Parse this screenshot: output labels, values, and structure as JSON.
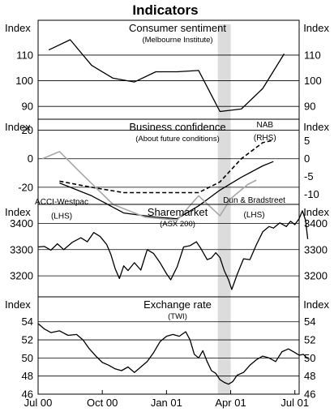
{
  "title": "Indicators",
  "shade": {
    "from": 8.4,
    "to": 9.0,
    "color": "#dcdcdc"
  },
  "x_axis": {
    "range": [
      0,
      12.2
    ],
    "ticks": [
      {
        "pos": 0,
        "label": "Jul 00"
      },
      {
        "pos": 3,
        "label": "Oct 00"
      },
      {
        "pos": 6,
        "label": "Jan 01"
      },
      {
        "pos": 9,
        "label": "Apr 01"
      },
      {
        "pos": 12,
        "label": "Jul 01"
      }
    ]
  },
  "chart_data": [
    {
      "type": "line",
      "title": "Consumer sentiment",
      "subtitle": "(Melbourne Institute)",
      "left_unit": "Index",
      "right_unit": "Index",
      "ylim": [
        85,
        122
      ],
      "yticks": [
        90,
        100,
        110
      ],
      "grid": true,
      "series": [
        {
          "style": "solid",
          "color": "#000000",
          "points": [
            [
              0.5,
              112
            ],
            [
              1.5,
              116
            ],
            [
              2.5,
              106
            ],
            [
              3.5,
              101
            ],
            [
              4.5,
              99.5
            ],
            [
              5.5,
              103.5
            ],
            [
              6.5,
              103.5
            ],
            [
              7.5,
              104
            ],
            [
              8.5,
              88
            ],
            [
              9.5,
              89
            ],
            [
              10.5,
              97
            ],
            [
              11.5,
              110.5
            ]
          ]
        }
      ]
    },
    {
      "type": "line",
      "title": "Business confidence",
      "subtitle": "(About future conditions)",
      "left_unit": "Index",
      "right_unit": "Index",
      "ylim": [
        -32,
        26
      ],
      "yticks": [
        -20,
        0,
        20
      ],
      "right_axis": {
        "ylim": [
          -12.8,
          10.4
        ],
        "ticks": [
          -10,
          -5,
          0,
          5
        ]
      },
      "grid": true,
      "annotations": [
        {
          "text": "NAB",
          "x": 10.6,
          "y": 24
        },
        {
          "text": "(RHS)",
          "x": 10.6,
          "y": 15
        },
        {
          "text": "ACCI-Westpac",
          "x": 1.1,
          "y": -30
        },
        {
          "text": "(LHS)",
          "x": 1.1,
          "y": -40
        },
        {
          "text": "Dun & Bradstreet",
          "x": 10.1,
          "y": -29
        },
        {
          "text": "(LHS)",
          "x": 10.1,
          "y": -39
        }
      ],
      "series": [
        {
          "style": "solid",
          "color": "#000000",
          "axis": "left",
          "points": [
            [
              1.0,
              -17
            ],
            [
              2.5,
              -26
            ],
            [
              4.0,
              -38
            ],
            [
              5.5,
              -41
            ],
            [
              6.5,
              -42
            ],
            [
              7.5,
              -33
            ],
            [
              8.5,
              -22
            ],
            [
              9.5,
              -13
            ],
            [
              10.5,
              -5
            ],
            [
              11.0,
              -2
            ]
          ]
        },
        {
          "style": "dashed",
          "color": "#000000",
          "axis": "right",
          "points": [
            [
              1.0,
              -6.3
            ],
            [
              2.5,
              -8
            ],
            [
              4.0,
              -9.5
            ],
            [
              5.5,
              -9.5
            ],
            [
              6.5,
              -9.5
            ],
            [
              7.5,
              -9.5
            ],
            [
              8.5,
              -6.5
            ],
            [
              9.5,
              0
            ],
            [
              10.5,
              4.5
            ],
            [
              11.0,
              5.2
            ]
          ]
        },
        {
          "style": "solid",
          "color": "#a8a8a8",
          "axis": "left",
          "points": [
            [
              0.2,
              0
            ],
            [
              1.0,
              5
            ],
            [
              2.0,
              -10
            ],
            [
              3.5,
              -32
            ],
            [
              5.0,
              -41
            ],
            [
              6.5,
              -43
            ],
            [
              7.5,
              -26
            ],
            [
              8.5,
              -40
            ],
            [
              9.0,
              -28
            ],
            [
              9.8,
              -18
            ],
            [
              10.2,
              -15
            ]
          ]
        }
      ]
    },
    {
      "type": "line",
      "title": "Sharemarket",
      "subtitle": "(ASX 200)",
      "left_unit": "Index",
      "right_unit": "Index",
      "ylim": [
        3120,
        3460
      ],
      "yticks": [
        3200,
        3300,
        3400
      ],
      "grid": true,
      "series": [
        {
          "style": "solid",
          "color": "#000000",
          "points": [
            [
              0.0,
              3310
            ],
            [
              0.3,
              3312
            ],
            [
              0.6,
              3298
            ],
            [
              0.9,
              3322
            ],
            [
              1.2,
              3300
            ],
            [
              1.6,
              3328
            ],
            [
              2.0,
              3345
            ],
            [
              2.3,
              3330
            ],
            [
              2.6,
              3365
            ],
            [
              2.9,
              3350
            ],
            [
              3.2,
              3320
            ],
            [
              3.4,
              3282
            ],
            [
              3.6,
              3228
            ],
            [
              3.8,
              3190
            ],
            [
              4.0,
              3238
            ],
            [
              4.2,
              3220
            ],
            [
              4.5,
              3250
            ],
            [
              4.8,
              3222
            ],
            [
              5.1,
              3300
            ],
            [
              5.4,
              3285
            ],
            [
              5.7,
              3250
            ],
            [
              6.0,
              3208
            ],
            [
              6.2,
              3185
            ],
            [
              6.5,
              3235
            ],
            [
              6.8,
              3310
            ],
            [
              7.1,
              3315
            ],
            [
              7.4,
              3330
            ],
            [
              7.6,
              3305
            ],
            [
              7.9,
              3262
            ],
            [
              8.1,
              3268
            ],
            [
              8.3,
              3288
            ],
            [
              8.5,
              3270
            ],
            [
              8.7,
              3220
            ],
            [
              8.9,
              3185
            ],
            [
              9.05,
              3148
            ],
            [
              9.3,
              3205
            ],
            [
              9.6,
              3265
            ],
            [
              9.9,
              3262
            ],
            [
              10.2,
              3318
            ],
            [
              10.5,
              3368
            ],
            [
              10.8,
              3388
            ],
            [
              11.0,
              3382
            ],
            [
              11.3,
              3402
            ],
            [
              11.6,
              3388
            ],
            [
              11.8,
              3408
            ],
            [
              12.0,
              3395
            ],
            [
              12.2,
              3418
            ],
            [
              12.35,
              3448
            ],
            [
              12.5,
              3412
            ],
            [
              12.6,
              3340
            ]
          ]
        }
      ]
    },
    {
      "type": "line",
      "title": "Exchange rate",
      "subtitle": "(TWI)",
      "left_unit": "Index",
      "right_unit": "Index",
      "ylim": [
        46,
        55.5
      ],
      "yticks": [
        46,
        48,
        50,
        52,
        54
      ],
      "grid": true,
      "series": [
        {
          "style": "solid",
          "color": "#000000",
          "points": [
            [
              0.0,
              53.8
            ],
            [
              0.3,
              53.2
            ],
            [
              0.6,
              52.8
            ],
            [
              1.0,
              53.0
            ],
            [
              1.4,
              52.5
            ],
            [
              1.8,
              52.6
            ],
            [
              2.1,
              52.0
            ],
            [
              2.4,
              51.0
            ],
            [
              2.7,
              50.2
            ],
            [
              3.0,
              49.5
            ],
            [
              3.3,
              49.2
            ],
            [
              3.6,
              48.8
            ],
            [
              3.9,
              48.6
            ],
            [
              4.2,
              49.0
            ],
            [
              4.5,
              48.4
            ],
            [
              4.8,
              49.0
            ],
            [
              5.1,
              49.6
            ],
            [
              5.4,
              50.6
            ],
            [
              5.7,
              51.8
            ],
            [
              6.0,
              52.4
            ],
            [
              6.3,
              52.6
            ],
            [
              6.6,
              52.4
            ],
            [
              6.9,
              52.9
            ],
            [
              7.1,
              52.0
            ],
            [
              7.3,
              50.4
            ],
            [
              7.5,
              50.0
            ],
            [
              7.7,
              50.8
            ],
            [
              7.9,
              49.6
            ],
            [
              8.1,
              48.6
            ],
            [
              8.3,
              48.3
            ],
            [
              8.5,
              47.6
            ],
            [
              8.7,
              47.3
            ],
            [
              8.9,
              47.1
            ],
            [
              9.1,
              47.4
            ],
            [
              9.3,
              48.1
            ],
            [
              9.6,
              48.4
            ],
            [
              9.9,
              49.2
            ],
            [
              10.2,
              49.8
            ],
            [
              10.5,
              50.2
            ],
            [
              10.8,
              50.0
            ],
            [
              11.1,
              49.6
            ],
            [
              11.4,
              50.7
            ],
            [
              11.7,
              51.0
            ],
            [
              12.0,
              50.6
            ],
            [
              12.2,
              50.3
            ],
            [
              12.4,
              50.4
            ],
            [
              12.6,
              49.9
            ]
          ]
        }
      ]
    }
  ]
}
